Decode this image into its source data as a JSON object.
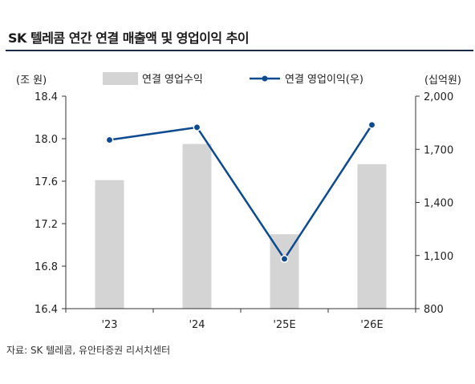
{
  "title": "SK 텔레콤 연간 연결 매출액 및 영업이익 추이",
  "source": "자료: SK 텔레콤, 유안타증권 리서치센터",
  "chart_data": {
    "type": "bar",
    "categories": [
      "'23",
      "'24",
      "'25E",
      "'26E"
    ],
    "series": [
      {
        "name": "연결 영업수익",
        "type": "bar",
        "axis": "left",
        "values": [
          17.61,
          17.95,
          17.1,
          17.76
        ],
        "color": "#d4d4d4"
      },
      {
        "name": "연결 영업이익(우)",
        "type": "line",
        "axis": "right",
        "values": [
          1753,
          1824,
          1081,
          1838
        ],
        "color": "#0d4a8f"
      }
    ],
    "left_axis": {
      "unit_label": "(조 원)",
      "ylim": [
        16.4,
        18.4
      ],
      "ticks": [
        "18.4",
        "18.0",
        "17.6",
        "17.2",
        "16.8",
        "16.4"
      ],
      "tick_values": [
        18.4,
        18.0,
        17.6,
        17.2,
        16.8,
        16.4
      ]
    },
    "right_axis": {
      "unit_label": "(십억원)",
      "ylim": [
        800,
        2000
      ],
      "ticks": [
        "2,000",
        "1,700",
        "1,400",
        "1,100",
        "800"
      ],
      "tick_values": [
        2000,
        1700,
        1400,
        1100,
        800
      ]
    },
    "legend_placement": "top-center",
    "grid": false
  }
}
